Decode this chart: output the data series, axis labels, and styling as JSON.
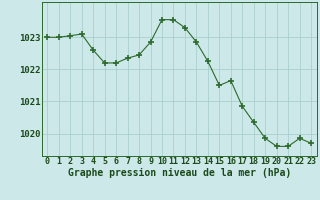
{
  "x": [
    0,
    1,
    2,
    3,
    4,
    5,
    6,
    7,
    8,
    9,
    10,
    11,
    12,
    13,
    14,
    15,
    16,
    17,
    18,
    19,
    20,
    21,
    22,
    23
  ],
  "y": [
    1023.0,
    1023.0,
    1023.05,
    1023.1,
    1022.6,
    1022.2,
    1022.2,
    1022.35,
    1022.45,
    1022.85,
    1023.55,
    1023.55,
    1023.3,
    1022.85,
    1022.25,
    1021.5,
    1021.65,
    1020.85,
    1020.35,
    1019.85,
    1019.6,
    1019.6,
    1019.85,
    1019.7
  ],
  "line_color": "#2d6a2d",
  "marker_color": "#2d6a2d",
  "bg_color": "#cce8e8",
  "grid_color": "#aacece",
  "axis_color": "#2d6a2d",
  "label_color": "#1a4a1a",
  "title": "Graphe pression niveau de la mer (hPa)",
  "ylim_min": 1019.3,
  "ylim_max": 1024.1,
  "yticks": [
    1020,
    1021,
    1022,
    1023
  ],
  "xticks": [
    0,
    1,
    2,
    3,
    4,
    5,
    6,
    7,
    8,
    9,
    10,
    11,
    12,
    13,
    14,
    15,
    16,
    17,
    18,
    19,
    20,
    21,
    22,
    23
  ],
  "tick_fontsize": 6.0,
  "title_fontsize": 7.0
}
